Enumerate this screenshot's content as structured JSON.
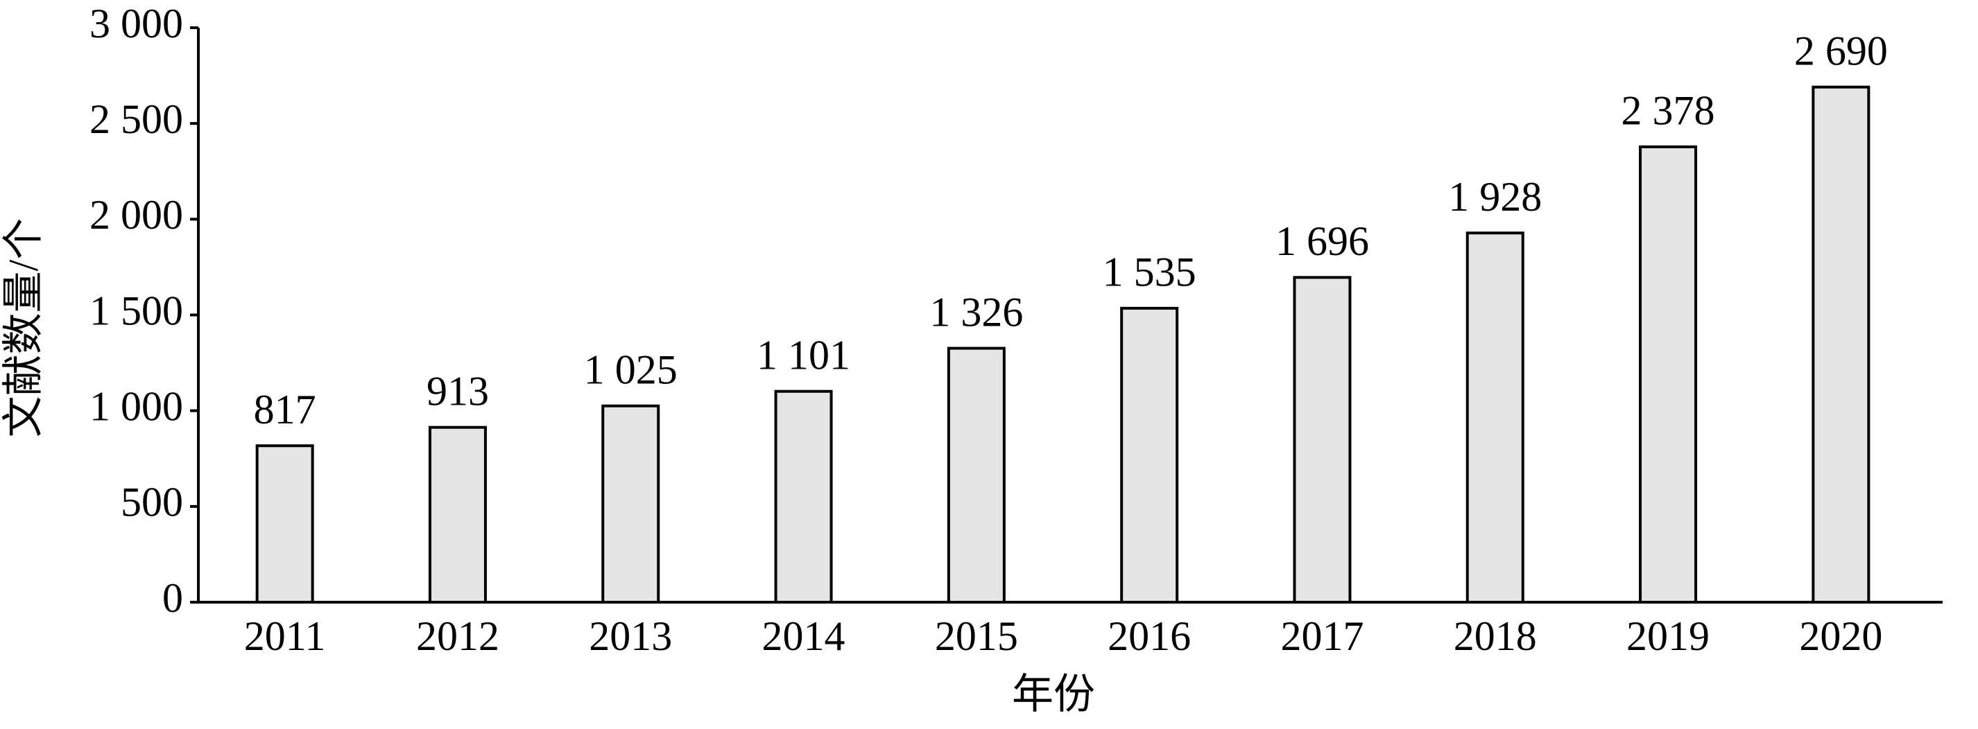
{
  "chart_data": {
    "type": "bar",
    "x_label": "年份",
    "y_label": "文献数量/个",
    "categories": [
      "2011",
      "2012",
      "2013",
      "2014",
      "2015",
      "2016",
      "2017",
      "2018",
      "2019",
      "2020"
    ],
    "values": [
      817,
      913,
      1025,
      1101,
      1326,
      1535,
      1696,
      1928,
      2378,
      2690
    ],
    "value_labels": [
      "817",
      "913",
      "1 025",
      "1 101",
      "1 326",
      "1 535",
      "1 696",
      "1 928",
      "2 378",
      "2 690"
    ],
    "color": "#e5e5e5",
    "ylim": [
      0,
      3000
    ],
    "yticks": [
      0,
      500,
      {
        "value": 1000,
        "label": "1 000"
      },
      {
        "value": 1500,
        "label": "1 500"
      },
      {
        "value": 2000,
        "label": "2 000"
      },
      {
        "value": 2500,
        "label": "2 500"
      },
      {
        "value": 3000,
        "label": "3 000"
      }
    ],
    "grid": false
  }
}
